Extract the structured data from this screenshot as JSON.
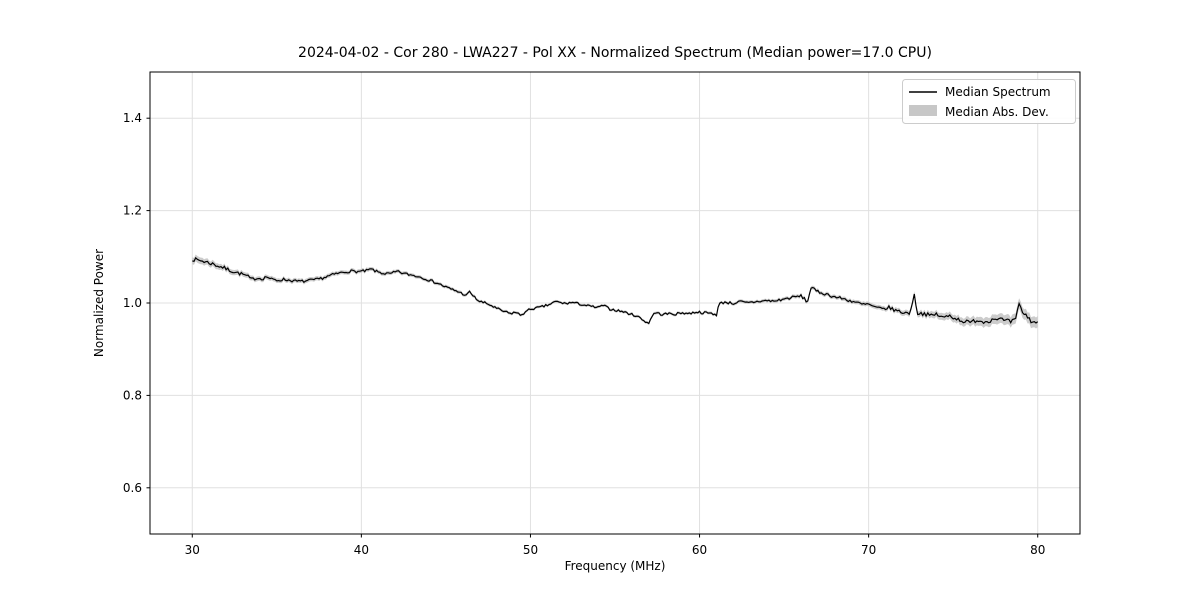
{
  "chart_data": {
    "type": "line",
    "title": "2024-04-02 - Cor 280 - LWA227 - Pol XX - Normalized Spectrum (Median power=17.0 CPU)",
    "xlabel": "Frequency (MHz)",
    "ylabel": "Normalized Power",
    "xlim": [
      27.5,
      82.5
    ],
    "ylim": [
      0.5,
      1.5
    ],
    "xticks": [
      30,
      40,
      50,
      60,
      70,
      80
    ],
    "yticks": [
      0.6,
      0.8,
      1.0,
      1.2,
      1.4
    ],
    "grid": true,
    "colors": {
      "line": "#000000",
      "band": "#c7c7c7",
      "grid": "#e0e0e0",
      "spine": "#000000",
      "legend_border": "#cccccc",
      "background": "#ffffff"
    },
    "legend": {
      "position": "upper right",
      "entries": [
        {
          "label": "Median Spectrum",
          "type": "line",
          "color": "#000000"
        },
        {
          "label": "Median Abs. Dev.",
          "type": "patch",
          "color": "#c7c7c7"
        }
      ]
    },
    "series": [
      {
        "name": "Median Spectrum",
        "type": "line",
        "color": "#000000",
        "points": [
          [
            30.0,
            1.096
          ],
          [
            30.2,
            1.093
          ],
          [
            30.5,
            1.092
          ],
          [
            30.8,
            1.089
          ],
          [
            31.1,
            1.086
          ],
          [
            31.4,
            1.082
          ],
          [
            31.8,
            1.077
          ],
          [
            32.2,
            1.071
          ],
          [
            32.6,
            1.066
          ],
          [
            33.0,
            1.062
          ],
          [
            33.3,
            1.057
          ],
          [
            33.5,
            1.051
          ],
          [
            33.8,
            1.054
          ],
          [
            34.2,
            1.053
          ],
          [
            34.4,
            1.057
          ],
          [
            34.7,
            1.051
          ],
          [
            35.0,
            1.049
          ],
          [
            35.4,
            1.051
          ],
          [
            35.8,
            1.049
          ],
          [
            36.2,
            1.047
          ],
          [
            36.6,
            1.047
          ],
          [
            37.0,
            1.049
          ],
          [
            37.4,
            1.051
          ],
          [
            37.8,
            1.055
          ],
          [
            38.2,
            1.06
          ],
          [
            38.6,
            1.064
          ],
          [
            39.0,
            1.067
          ],
          [
            39.4,
            1.069
          ],
          [
            39.8,
            1.068
          ],
          [
            40.2,
            1.069
          ],
          [
            40.6,
            1.073
          ],
          [
            40.9,
            1.068
          ],
          [
            41.3,
            1.064
          ],
          [
            41.7,
            1.063
          ],
          [
            42.1,
            1.068
          ],
          [
            42.5,
            1.064
          ],
          [
            42.9,
            1.061
          ],
          [
            43.3,
            1.058
          ],
          [
            43.7,
            1.054
          ],
          [
            44.1,
            1.048
          ],
          [
            44.5,
            1.043
          ],
          [
            44.9,
            1.036
          ],
          [
            45.3,
            1.03
          ],
          [
            45.7,
            1.025
          ],
          [
            46.0,
            1.02
          ],
          [
            46.2,
            1.016
          ],
          [
            46.4,
            1.024
          ],
          [
            46.7,
            1.012
          ],
          [
            47.0,
            1.003
          ],
          [
            47.3,
            1.0
          ],
          [
            47.6,
            0.996
          ],
          [
            48.0,
            0.988
          ],
          [
            48.4,
            0.982
          ],
          [
            48.8,
            0.977
          ],
          [
            49.1,
            0.98
          ],
          [
            49.4,
            0.974
          ],
          [
            49.7,
            0.98
          ],
          [
            50.0,
            0.987
          ],
          [
            50.5,
            0.99
          ],
          [
            51.0,
            0.995
          ],
          [
            51.5,
            1.003
          ],
          [
            52.0,
            0.999
          ],
          [
            52.5,
            1.001
          ],
          [
            53.0,
            0.997
          ],
          [
            53.5,
            0.993
          ],
          [
            54.0,
            0.99
          ],
          [
            54.3,
            0.995
          ],
          [
            54.7,
            0.987
          ],
          [
            55.1,
            0.984
          ],
          [
            55.5,
            0.981
          ],
          [
            55.9,
            0.976
          ],
          [
            56.3,
            0.972
          ],
          [
            56.7,
            0.962
          ],
          [
            57.0,
            0.956
          ],
          [
            57.2,
            0.973
          ],
          [
            57.4,
            0.979
          ],
          [
            57.8,
            0.975
          ],
          [
            58.2,
            0.977
          ],
          [
            58.6,
            0.976
          ],
          [
            59.0,
            0.979
          ],
          [
            59.4,
            0.977
          ],
          [
            59.8,
            0.981
          ],
          [
            60.2,
            0.979
          ],
          [
            60.6,
            0.978
          ],
          [
            61.0,
            0.975
          ],
          [
            61.15,
            0.998
          ],
          [
            61.5,
            1.002
          ],
          [
            62.0,
            0.999
          ],
          [
            62.4,
            1.003
          ],
          [
            62.8,
            1.0
          ],
          [
            63.2,
            1.002
          ],
          [
            63.6,
            1.004
          ],
          [
            64.0,
            1.005
          ],
          [
            64.4,
            1.004
          ],
          [
            64.8,
            1.007
          ],
          [
            65.2,
            1.01
          ],
          [
            65.6,
            1.013
          ],
          [
            66.0,
            1.015
          ],
          [
            66.2,
            1.01
          ],
          [
            66.35,
            0.999
          ],
          [
            66.6,
            1.034
          ],
          [
            66.9,
            1.026
          ],
          [
            67.2,
            1.022
          ],
          [
            67.6,
            1.018
          ],
          [
            68.0,
            1.013
          ],
          [
            68.4,
            1.01
          ],
          [
            68.8,
            1.006
          ],
          [
            69.2,
            1.002
          ],
          [
            69.6,
            0.997
          ],
          [
            70.0,
            0.997
          ],
          [
            70.4,
            0.99
          ],
          [
            70.8,
            0.987
          ],
          [
            71.2,
            0.99
          ],
          [
            71.6,
            0.984
          ],
          [
            72.0,
            0.98
          ],
          [
            72.4,
            0.977
          ],
          [
            72.7,
            1.016
          ],
          [
            72.9,
            0.978
          ],
          [
            73.3,
            0.977
          ],
          [
            73.7,
            0.972
          ],
          [
            74.0,
            0.976
          ],
          [
            74.4,
            0.968
          ],
          [
            74.8,
            0.973
          ],
          [
            75.2,
            0.966
          ],
          [
            75.6,
            0.961
          ],
          [
            76.0,
            0.957
          ],
          [
            76.4,
            0.964
          ],
          [
            76.8,
            0.959
          ],
          [
            77.2,
            0.963
          ],
          [
            77.6,
            0.968
          ],
          [
            78.0,
            0.962
          ],
          [
            78.4,
            0.959
          ],
          [
            78.7,
            0.964
          ],
          [
            78.9,
            0.997
          ],
          [
            79.1,
            0.981
          ],
          [
            79.4,
            0.969
          ],
          [
            79.7,
            0.958
          ],
          [
            80.0,
            0.96
          ]
        ]
      },
      {
        "name": "Median Abs. Dev.",
        "type": "band",
        "color": "#c7c7c7",
        "halfwidth_points": [
          [
            30,
            0.0075
          ],
          [
            32,
            0.006
          ],
          [
            34,
            0.005
          ],
          [
            38,
            0.0045
          ],
          [
            42,
            0.004
          ],
          [
            46,
            0.0035
          ],
          [
            50,
            0.003
          ],
          [
            55,
            0.003
          ],
          [
            60,
            0.003
          ],
          [
            63,
            0.0035
          ],
          [
            66,
            0.004
          ],
          [
            69,
            0.0045
          ],
          [
            71,
            0.005
          ],
          [
            73,
            0.0065
          ],
          [
            75,
            0.008
          ],
          [
            77,
            0.01
          ],
          [
            79,
            0.0115
          ],
          [
            80,
            0.012
          ]
        ]
      }
    ],
    "noise": {
      "seed": 7,
      "sample_step_mhz": 0.1,
      "amplitude_points": [
        [
          30,
          0.005
        ],
        [
          32,
          0.004
        ],
        [
          36,
          0.003
        ],
        [
          45,
          0.0028
        ],
        [
          55,
          0.0025
        ],
        [
          65,
          0.003
        ],
        [
          70,
          0.0035
        ],
        [
          75,
          0.0045
        ],
        [
          80,
          0.005
        ]
      ]
    }
  }
}
